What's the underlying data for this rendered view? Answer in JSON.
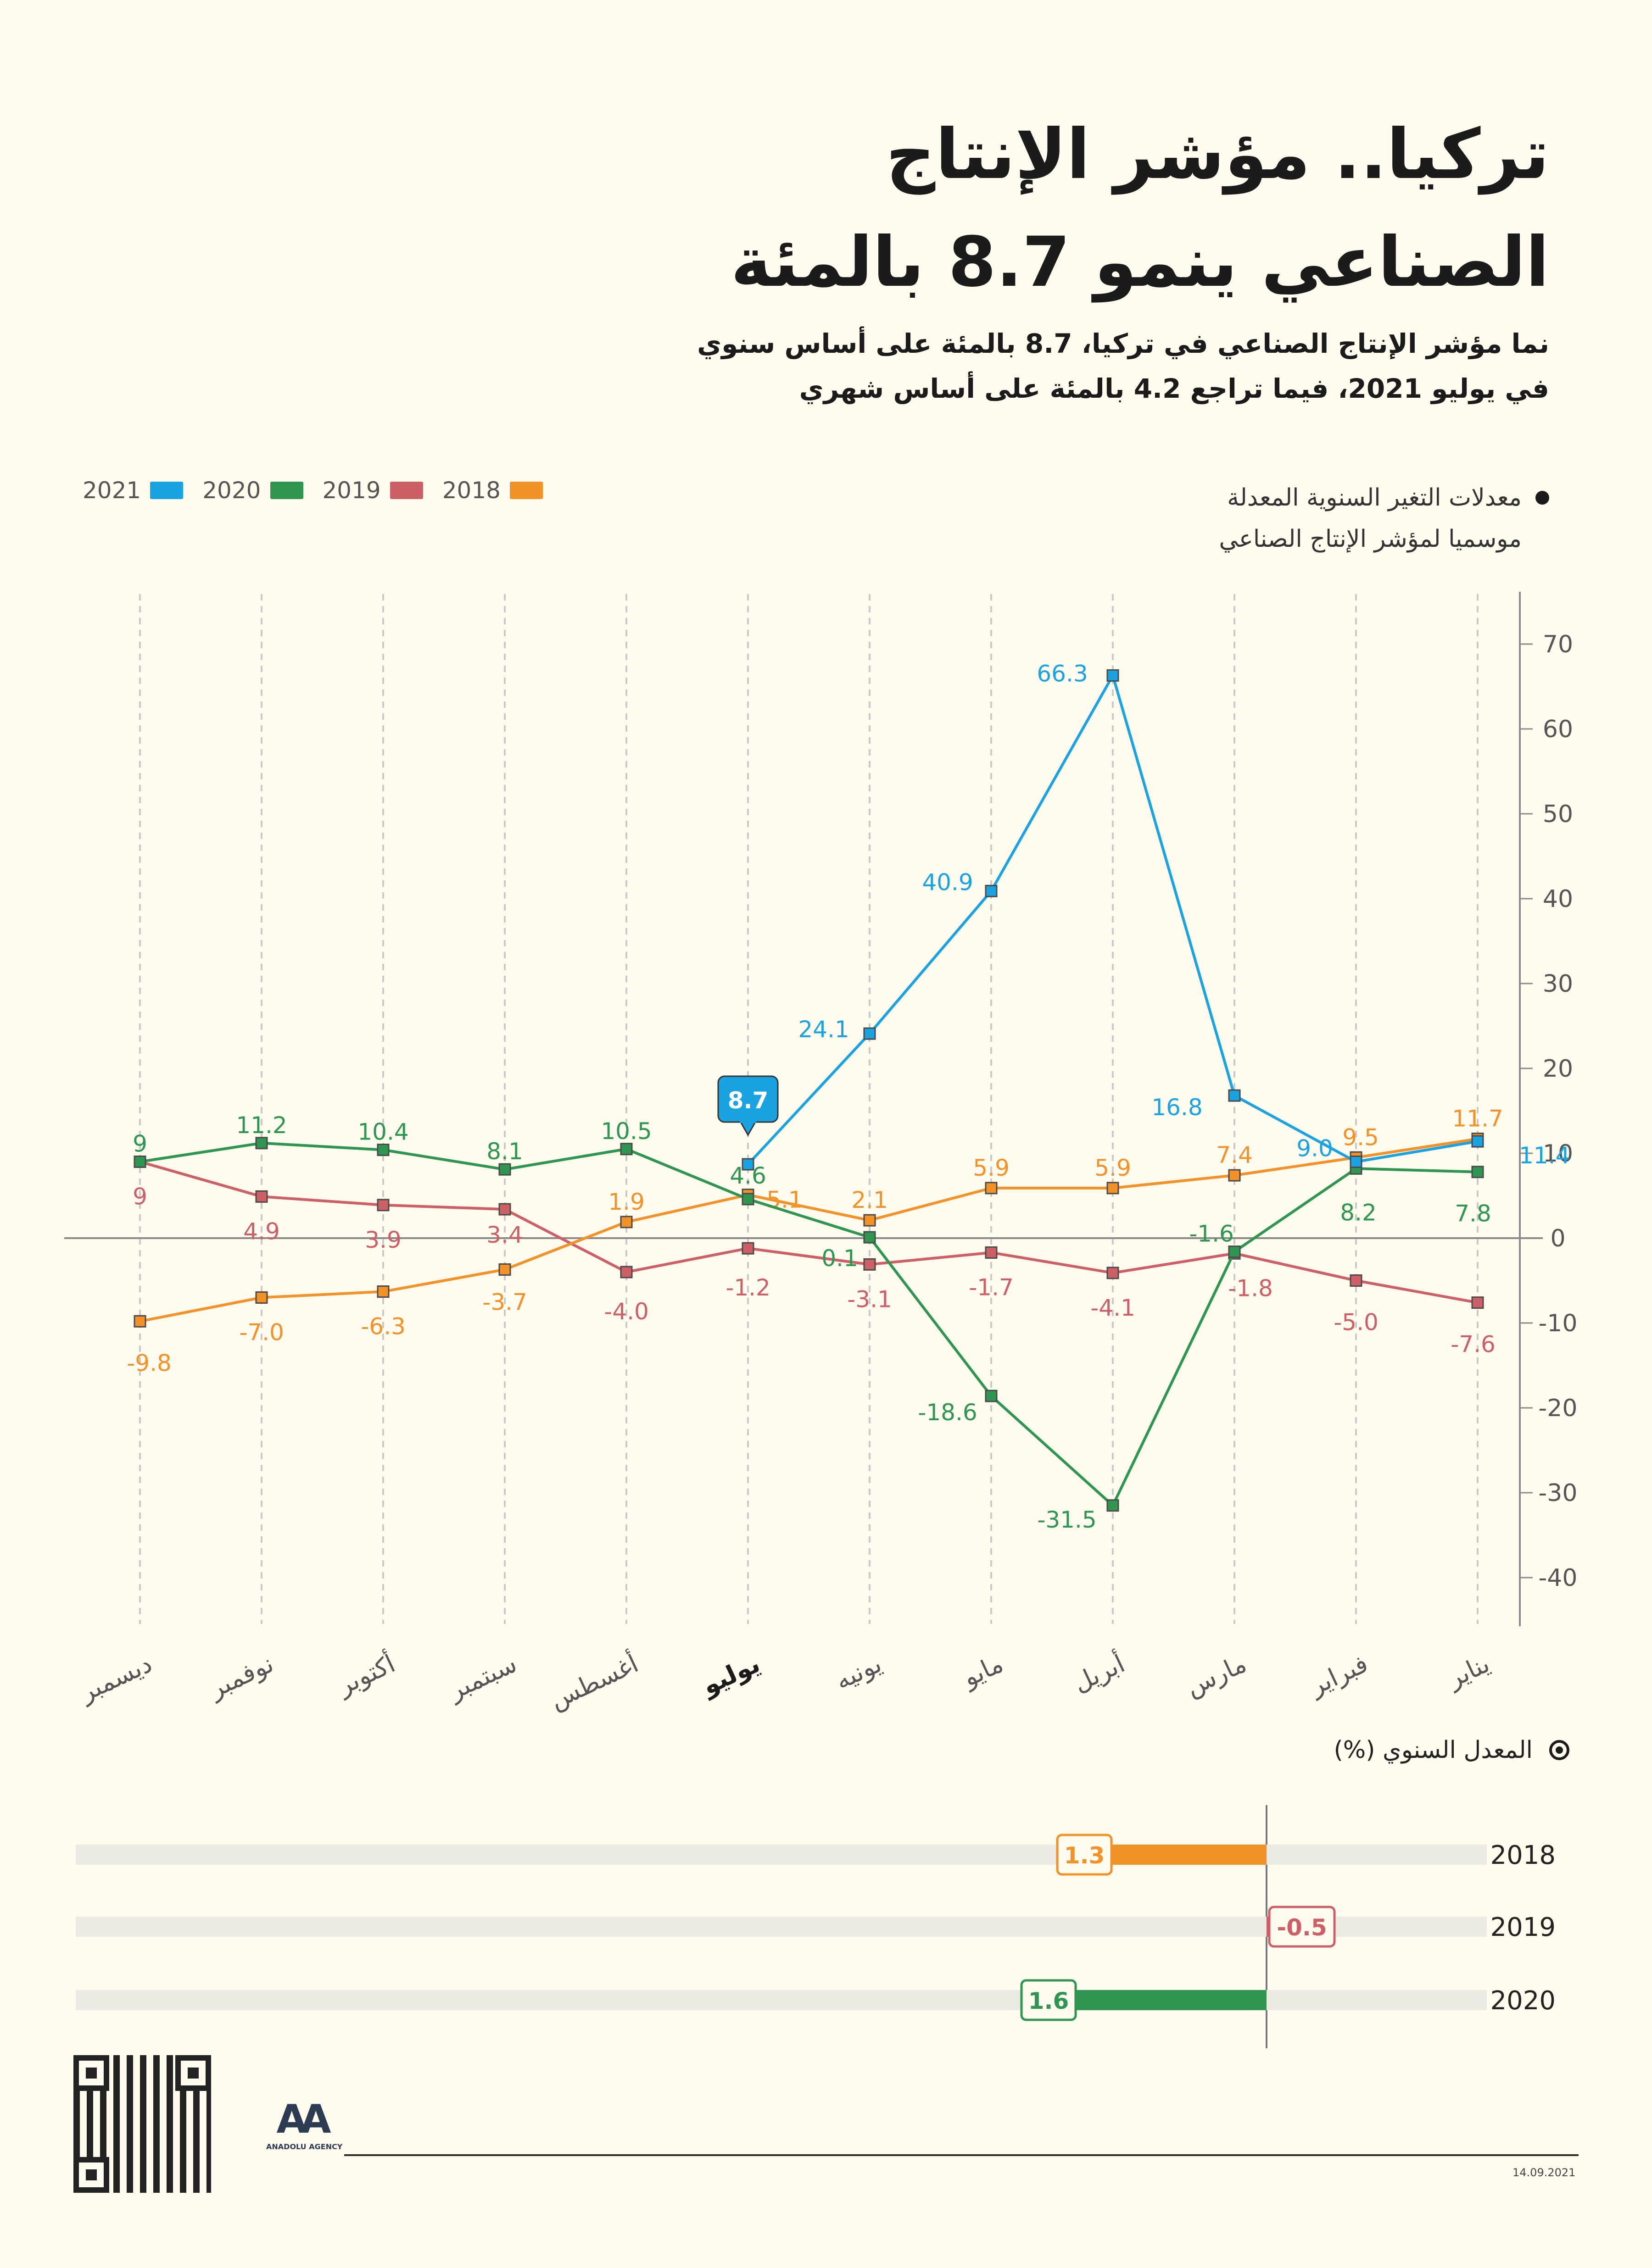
{
  "title_line1": "تركيا.. مؤشر الإنتاج",
  "title_line2": "الصناعي ينمو 8.7 بالمئة",
  "subtitle_line1": "نما مؤشر الإنتاج الصناعي في تركيا، 8.7 بالمئة على أساس سنوي",
  "subtitle_line2": "في يوليو 2021، فيما تراجع 4.2 بالمئة على أساس شهري",
  "metric_label_line1": "معدلات التغير السنوية المعدلة",
  "metric_label_line2": "موسميا لمؤشر الإنتاج الصناعي",
  "legend": [
    {
      "label": "2021",
      "color": "#1aa3e0"
    },
    {
      "label": "2020",
      "color": "#2e9650"
    },
    {
      "label": "2019",
      "color": "#cc6066"
    },
    {
      "label": "2018",
      "color": "#f29228"
    }
  ],
  "annual_title": "المعدل السنوي (%)",
  "date": "14.09.2021",
  "logo_text": "AA",
  "logo_agency": "ANADOLU AGENCY",
  "chart_data": [
    {
      "type": "line",
      "months": [
        "يناير",
        "فبراير",
        "مارس",
        "أبريل",
        "مايو",
        "يونيه",
        "يوليو",
        "أغسطس",
        "سبتمبر",
        "أكتوبر",
        "نوفمبر",
        "ديسمبر"
      ],
      "highlight_month": "يوليو",
      "y_ticks": [
        "70",
        "60",
        "50",
        "40",
        "30",
        "20",
        "10",
        "0",
        "-10",
        "-20",
        "-30",
        "-40"
      ],
      "ylim": [
        -45,
        75
      ],
      "grid": "vertical dashed",
      "legend_position": "top-left",
      "series": [
        {
          "name": "2021",
          "color": "#1aa3e0",
          "values": [
            11.4,
            9.0,
            16.8,
            66.3,
            40.9,
            24.1,
            8.7,
            null,
            null,
            null,
            null,
            null
          ],
          "labels": [
            "11.4",
            "9.0",
            "16.8",
            "66.3",
            "40.9",
            "24.1",
            "8.7",
            "",
            "",
            "",
            "",
            ""
          ]
        },
        {
          "name": "2020",
          "color": "#2e9650",
          "values": [
            7.8,
            8.2,
            -1.6,
            -31.5,
            -18.6,
            0.1,
            4.6,
            10.5,
            8.1,
            10.4,
            11.2,
            9
          ],
          "labels": [
            "7.8",
            "8.2",
            "-1.6",
            "-31.5",
            "-18.6",
            "0.1",
            "4.6",
            "10.5",
            "8.1",
            "10.4",
            "11.2",
            "9"
          ]
        },
        {
          "name": "2019",
          "color": "#cc6066",
          "values": [
            -7.6,
            -5.0,
            -1.8,
            -4.1,
            -1.7,
            -3.1,
            -1.2,
            -4.0,
            3.4,
            3.9,
            4.9,
            9
          ],
          "labels": [
            "-7.6",
            "-5.0",
            "-1.8",
            "-4.1",
            "-1.7",
            "-3.1",
            "-1.2",
            "-4.0",
            "3.4",
            "3.9",
            "4.9",
            "9"
          ]
        },
        {
          "name": "2018",
          "color": "#f29228",
          "values": [
            11.7,
            9.5,
            7.4,
            5.9,
            5.9,
            2.1,
            5.1,
            1.9,
            -3.7,
            -6.3,
            -7.0,
            -9.8
          ],
          "labels": [
            "11.7",
            "9.5",
            "7.4",
            "5.9",
            "5.9",
            "2.1",
            "5.1",
            "1.9",
            "-3.7",
            "-6.3",
            "-7.0",
            "-9.8"
          ]
        }
      ]
    },
    {
      "type": "bar",
      "orientation": "horizontal",
      "categories": [
        "2018",
        "2019",
        "2020"
      ],
      "values": [
        1.3,
        -0.5,
        1.6
      ],
      "labels": [
        "1.3",
        "-0.5",
        "1.6"
      ],
      "colors": [
        "#f29228",
        "#cc6066",
        "#2e9650"
      ]
    }
  ]
}
